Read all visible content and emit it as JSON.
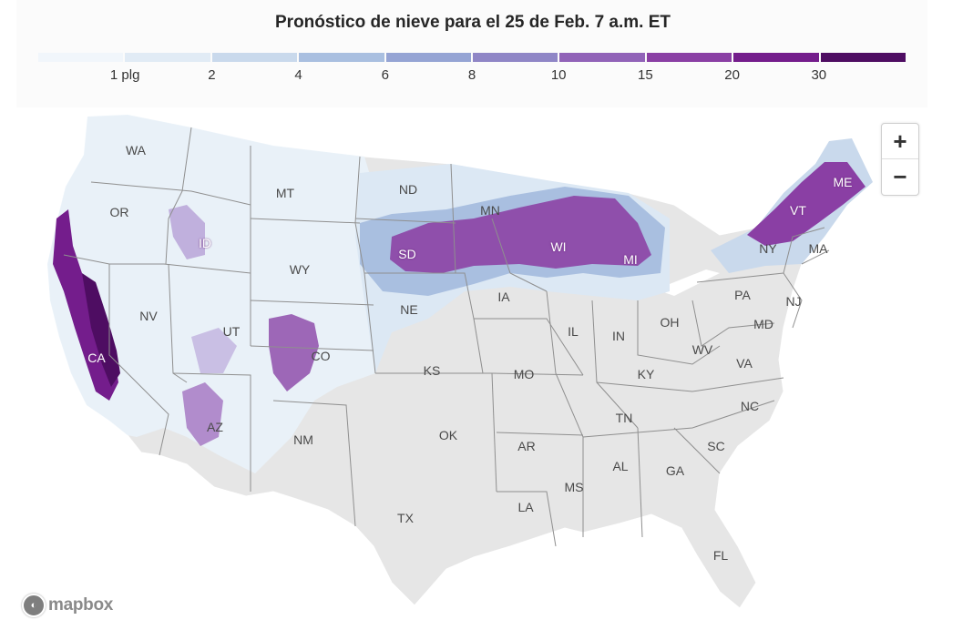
{
  "title": "Pronóstico de nieve para el 25 de Feb. 7 a.m. ET",
  "legend": {
    "colors": [
      "#f1f6fb",
      "#e1ebf5",
      "#c9d9ec",
      "#a9bfe0",
      "#95a4d4",
      "#8f86c6",
      "#9163b8",
      "#8a3fa4",
      "#741d8c",
      "#4e0d62"
    ],
    "labels": [
      "1 plg",
      "2",
      "4",
      "6",
      "8",
      "10",
      "15",
      "20",
      "30"
    ]
  },
  "zoom": {
    "in_label": "+",
    "out_label": "−"
  },
  "attribution": {
    "brand": "mapbox"
  },
  "states": [
    {
      "name": "WA"
    },
    {
      "name": "OR"
    },
    {
      "name": "CA",
      "light": true
    },
    {
      "name": "ID",
      "light": true
    },
    {
      "name": "NV"
    },
    {
      "name": "MT"
    },
    {
      "name": "WY"
    },
    {
      "name": "UT"
    },
    {
      "name": "AZ"
    },
    {
      "name": "CO"
    },
    {
      "name": "NM"
    },
    {
      "name": "ND"
    },
    {
      "name": "SD",
      "light": true
    },
    {
      "name": "NE"
    },
    {
      "name": "KS"
    },
    {
      "name": "OK"
    },
    {
      "name": "TX"
    },
    {
      "name": "MN"
    },
    {
      "name": "IA"
    },
    {
      "name": "MO"
    },
    {
      "name": "AR"
    },
    {
      "name": "LA"
    },
    {
      "name": "WI",
      "light": true
    },
    {
      "name": "IL"
    },
    {
      "name": "MI",
      "light": true
    },
    {
      "name": "IN"
    },
    {
      "name": "OH"
    },
    {
      "name": "KY"
    },
    {
      "name": "TN"
    },
    {
      "name": "MS"
    },
    {
      "name": "AL"
    },
    {
      "name": "GA"
    },
    {
      "name": "FL"
    },
    {
      "name": "SC"
    },
    {
      "name": "NC"
    },
    {
      "name": "VA"
    },
    {
      "name": "WV"
    },
    {
      "name": "MD"
    },
    {
      "name": "PA"
    },
    {
      "name": "NY"
    },
    {
      "name": "NJ"
    },
    {
      "name": "VT",
      "light": true
    },
    {
      "name": "MA"
    },
    {
      "name": "ME",
      "light": true
    }
  ]
}
